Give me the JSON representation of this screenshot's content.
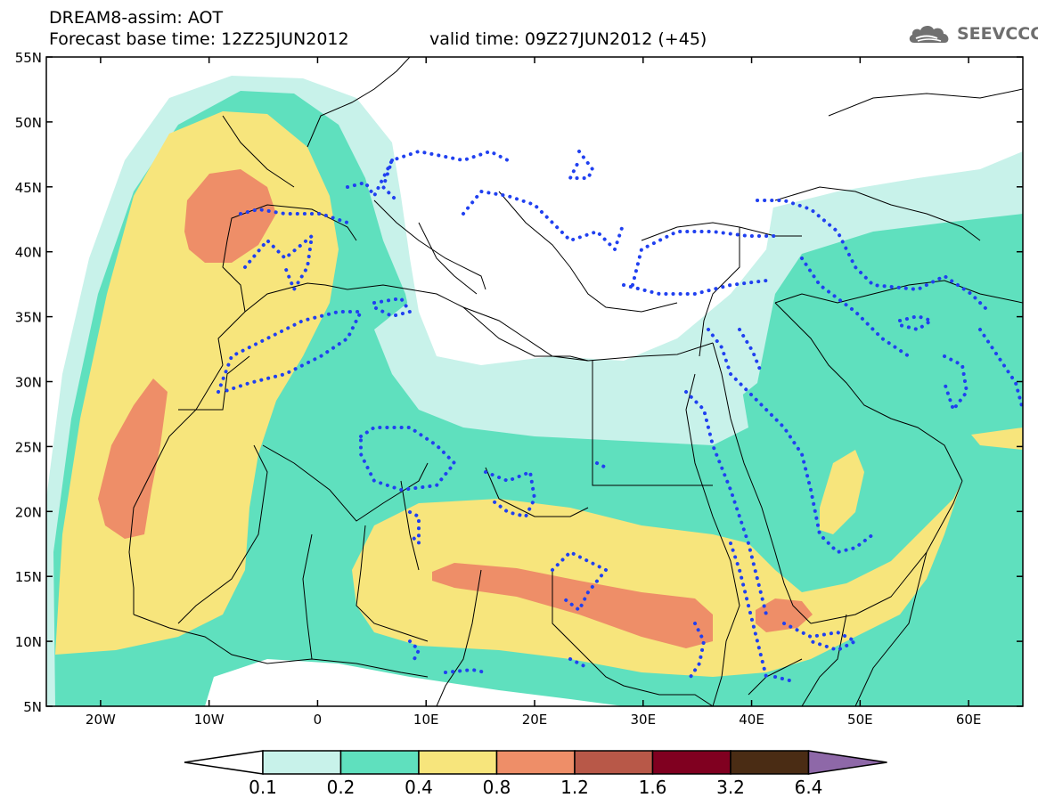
{
  "header": {
    "title_line1": "DREAM8-assim: AOT",
    "title_line2": "Forecast base time: 12Z25JUN2012",
    "title_line3": "valid time: 09Z27JUN2012 (+45)"
  },
  "logo": {
    "text": "SEEVCCC",
    "icon": "cloud-icon"
  },
  "map": {
    "lat_labels": [
      "55N",
      "50N",
      "45N",
      "40N",
      "35N",
      "30N",
      "25N",
      "20N",
      "15N",
      "10N",
      "5N"
    ],
    "lon_labels": [
      "20W",
      "10W",
      "0",
      "10E",
      "20E",
      "30E",
      "40E",
      "50E",
      "60E"
    ],
    "extent": {
      "lon_min": -25,
      "lon_max": 65,
      "lat_min": 5,
      "lat_max": 55
    }
  },
  "colorbar": {
    "ticks": [
      "0.1",
      "0.2",
      "0.4",
      "0.8",
      "1.2",
      "1.6",
      "3.2",
      "6.4"
    ],
    "colors": [
      "#ffffff",
      "#c8f2ea",
      "#5fe0be",
      "#f7e57c",
      "#ee8e68",
      "#b85848",
      "#800020",
      "#4a2c14",
      "#8e68a8"
    ]
  },
  "palette": {
    "c01": "#c8f2ea",
    "c02": "#5fe0be",
    "c04": "#f7e57c",
    "c08": "#ee8e68",
    "dots": "#2040f0"
  }
}
